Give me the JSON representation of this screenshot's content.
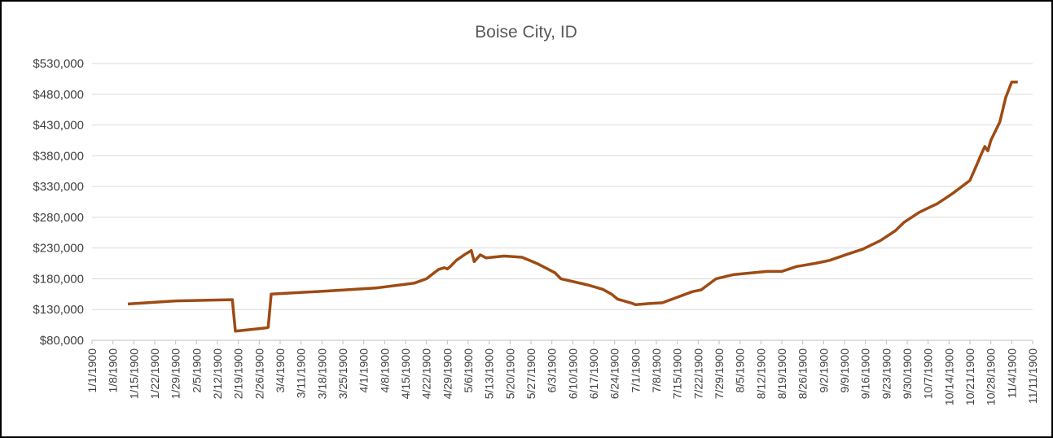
{
  "chart_data": {
    "type": "line",
    "title": "Boise City, ID",
    "x": [
      "1/13/1900",
      "1/22/1900",
      "1/29/1900",
      "2/17/1900",
      "2/18/1900",
      "2/28/1900",
      "2/29/1900",
      "3/1/1900",
      "3/19/1900",
      "4/5/1900",
      "4/18/1900",
      "4/22/1900",
      "4/26/1900",
      "4/28/1900",
      "4/29/1900",
      "4/30/1900",
      "5/2/1900",
      "5/5/1900",
      "5/7/1900",
      "5/8/1900",
      "5/10/1900",
      "5/12/1900",
      "5/18/1900",
      "5/24/1900",
      "5/29/1900",
      "6/4/1900",
      "6/6/1900",
      "6/15/1900",
      "6/20/1900",
      "6/23/1900",
      "6/25/1900",
      "6/30/1900",
      "7/1/1900",
      "7/6/1900",
      "7/10/1900",
      "7/15/1900",
      "7/20/1900",
      "7/23/1900",
      "7/28/1900",
      "8/3/1900",
      "8/14/1900",
      "8/19/1900",
      "8/24/1900",
      "8/30/1900",
      "9/4/1900",
      "9/10/1900",
      "9/15/1900",
      "9/21/1900",
      "9/26/1900",
      "9/29/1900",
      "10/4/1900",
      "10/10/1900",
      "10/15/1900",
      "10/21/1900",
      "10/23/1900",
      "10/25/1900",
      "10/26/1900",
      "10/27/1900",
      "10/28/1900",
      "10/31/1900",
      "11/2/1900",
      "11/4/1900",
      "11/6/1900"
    ],
    "series": [
      {
        "name": "Boise City, ID",
        "color": "#9e4b14",
        "values": [
          139000,
          142000,
          144000,
          146000,
          95000,
          100000,
          101000,
          155000,
          160000,
          165000,
          173000,
          180000,
          195000,
          198000,
          196000,
          200000,
          210000,
          220000,
          226000,
          208000,
          219000,
          214000,
          217000,
          215000,
          205000,
          190000,
          180000,
          170000,
          163000,
          155000,
          147000,
          140000,
          138000,
          140000,
          141000,
          150000,
          159000,
          162000,
          180000,
          187000,
          192000,
          192000,
          200000,
          205000,
          210000,
          220000,
          228000,
          242000,
          258000,
          272000,
          288000,
          302000,
          318000,
          340000,
          362000,
          385000,
          395000,
          388000,
          405000,
          435000,
          475000,
          500000,
          500000
        ]
      }
    ],
    "xlim": [
      "1/1/1900",
      "11/11/1900"
    ],
    "xticks": [
      "1/1/1900",
      "1/8/1900",
      "1/15/1900",
      "1/22/1900",
      "1/29/1900",
      "2/5/1900",
      "2/12/1900",
      "2/19/1900",
      "2/26/1900",
      "3/4/1900",
      "3/11/1900",
      "3/18/1900",
      "3/25/1900",
      "4/1/1900",
      "4/8/1900",
      "4/15/1900",
      "4/22/1900",
      "4/29/1900",
      "5/6/1900",
      "5/13/1900",
      "5/20/1900",
      "5/27/1900",
      "6/3/1900",
      "6/10/1900",
      "6/17/1900",
      "6/24/1900",
      "7/1/1900",
      "7/8/1900",
      "7/15/1900",
      "7/22/1900",
      "7/29/1900",
      "8/5/1900",
      "8/12/1900",
      "8/19/1900",
      "8/26/1900",
      "9/2/1900",
      "9/9/1900",
      "9/16/1900",
      "9/23/1900",
      "9/30/1900",
      "10/7/1900",
      "10/14/1900",
      "10/21/1900",
      "10/28/1900",
      "11/4/1900",
      "11/11/1900"
    ],
    "ylim": [
      80000,
      530000
    ],
    "yticks": [
      {
        "value": 80000,
        "label": "$80,000"
      },
      {
        "value": 130000,
        "label": "$130,000"
      },
      {
        "value": 180000,
        "label": "$180,000"
      },
      {
        "value": 230000,
        "label": "$230,000"
      },
      {
        "value": 280000,
        "label": "$280,000"
      },
      {
        "value": 330000,
        "label": "$330,000"
      },
      {
        "value": 380000,
        "label": "$380,000"
      },
      {
        "value": 430000,
        "label": "$430,000"
      },
      {
        "value": 480000,
        "label": "$480,000"
      },
      {
        "value": 530000,
        "label": "$530,000"
      }
    ],
    "grid": true
  }
}
